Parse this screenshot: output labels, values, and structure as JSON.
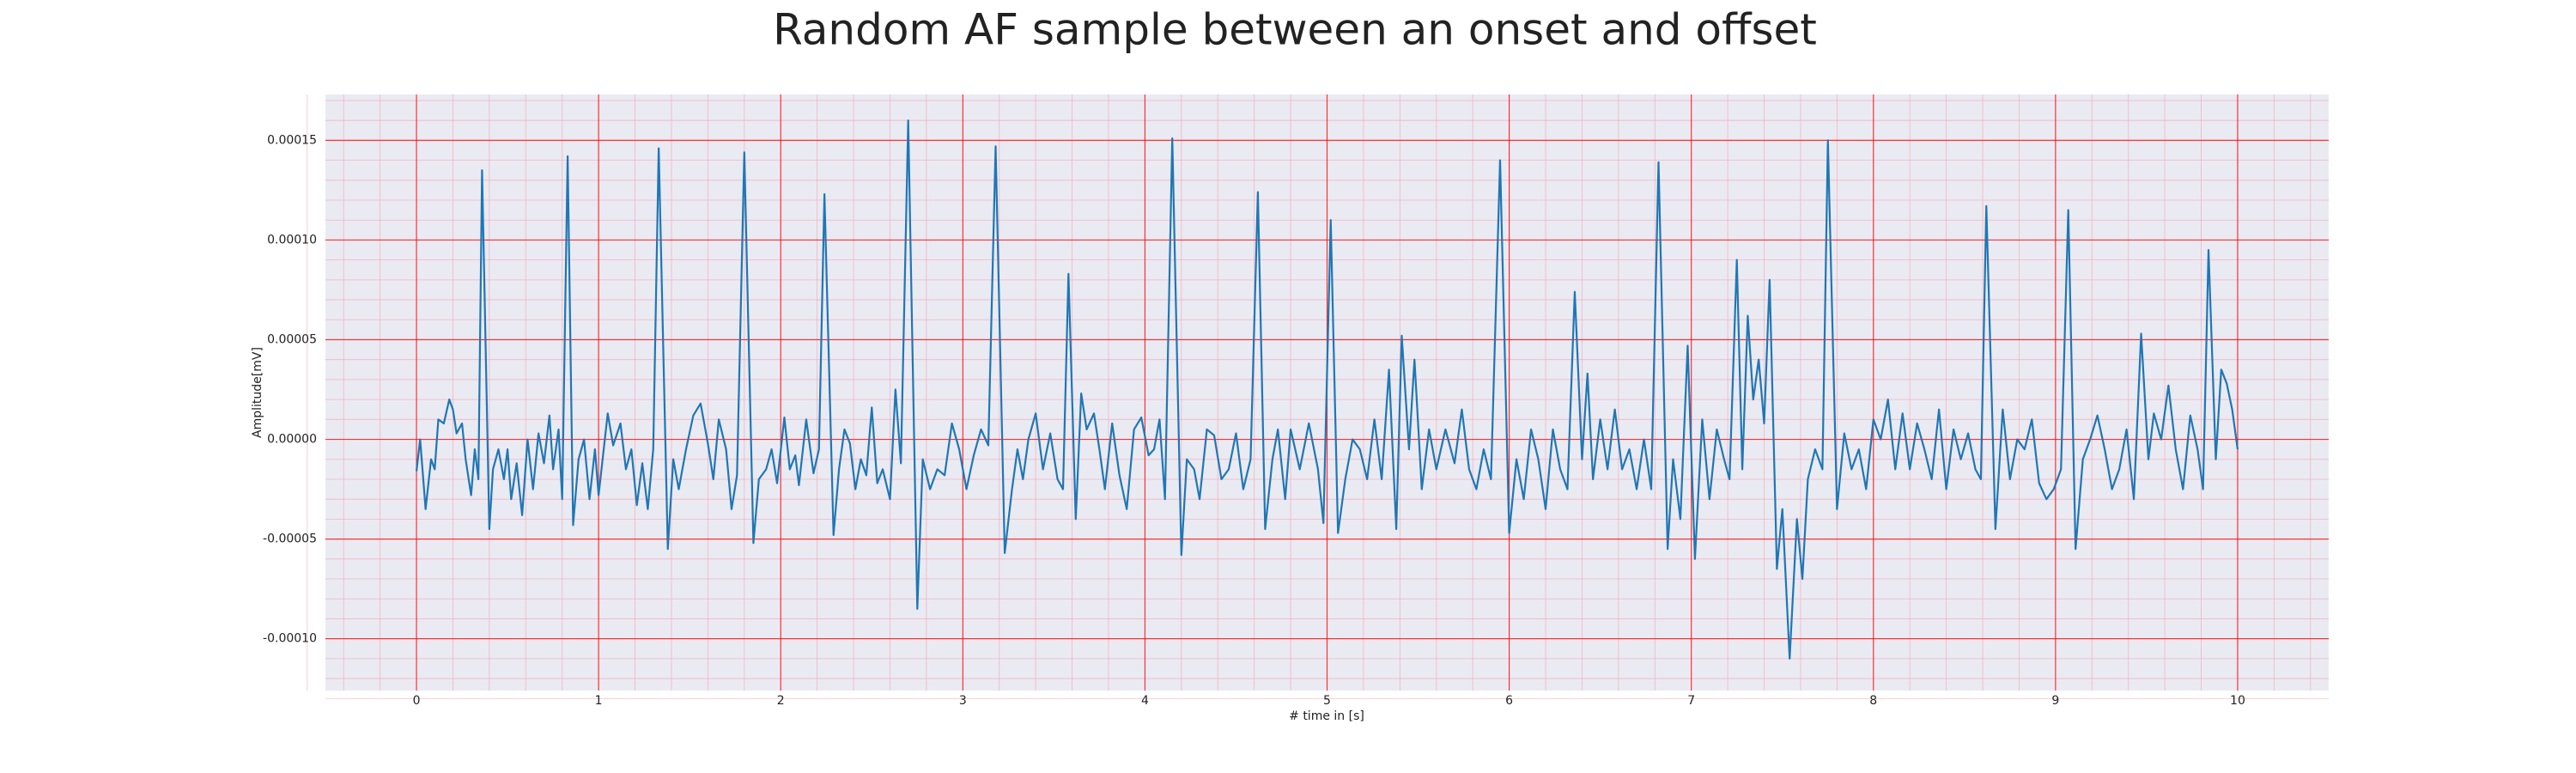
{
  "chart_data": {
    "type": "line",
    "title": "Random AF sample between an onset and offset",
    "xlabel": "# time in [s]",
    "ylabel": "Amplitude[mV]",
    "color": "#1f77b4",
    "grid": true,
    "minor_grid": true,
    "x": [
      0,
      0.02,
      0.05,
      0.08,
      0.1,
      0.12,
      0.15,
      0.18,
      0.2,
      0.22,
      0.25,
      0.27,
      0.3,
      0.32,
      0.34,
      0.36,
      0.4,
      0.42,
      0.45,
      0.48,
      0.5,
      0.52,
      0.55,
      0.58,
      0.61,
      0.64,
      0.67,
      0.7,
      0.73,
      0.75,
      0.78,
      0.8,
      0.83,
      0.86,
      0.89,
      0.92,
      0.95,
      0.98,
      1.0,
      1.05,
      1.08,
      1.12,
      1.15,
      1.18,
      1.21,
      1.24,
      1.27,
      1.3,
      1.33,
      1.38,
      1.41,
      1.44,
      1.48,
      1.52,
      1.56,
      1.6,
      1.63,
      1.66,
      1.7,
      1.73,
      1.76,
      1.8,
      1.85,
      1.88,
      1.92,
      1.95,
      1.98,
      2.02,
      2.05,
      2.08,
      2.1,
      2.14,
      2.18,
      2.21,
      2.24,
      2.29,
      2.32,
      2.35,
      2.38,
      2.41,
      2.44,
      2.47,
      2.5,
      2.53,
      2.56,
      2.6,
      2.63,
      2.66,
      2.7,
      2.75,
      2.78,
      2.82,
      2.86,
      2.9,
      2.94,
      2.98,
      3.02,
      3.06,
      3.1,
      3.14,
      3.18,
      3.23,
      3.27,
      3.3,
      3.33,
      3.36,
      3.4,
      3.44,
      3.48,
      3.52,
      3.55,
      3.58,
      3.62,
      3.65,
      3.68,
      3.72,
      3.75,
      3.78,
      3.82,
      3.86,
      3.9,
      3.94,
      3.98,
      4.02,
      4.05,
      4.08,
      4.11,
      4.15,
      4.2,
      4.23,
      4.27,
      4.3,
      4.34,
      4.38,
      4.42,
      4.46,
      4.5,
      4.54,
      4.58,
      4.62,
      4.66,
      4.7,
      4.73,
      4.77,
      4.8,
      4.85,
      4.9,
      4.95,
      4.98,
      5.02,
      5.06,
      5.1,
      5.14,
      5.18,
      5.22,
      5.26,
      5.3,
      5.34,
      5.38,
      5.41,
      5.45,
      5.48,
      5.52,
      5.56,
      5.6,
      5.65,
      5.7,
      5.74,
      5.78,
      5.82,
      5.86,
      5.9,
      5.95,
      6.0,
      6.04,
      6.08,
      6.12,
      6.16,
      6.2,
      6.24,
      6.28,
      6.32,
      6.36,
      6.4,
      6.43,
      6.46,
      6.5,
      6.54,
      6.58,
      6.62,
      6.66,
      6.7,
      6.74,
      6.78,
      6.82,
      6.87,
      6.9,
      6.94,
      6.98,
      7.02,
      7.06,
      7.1,
      7.14,
      7.18,
      7.21,
      7.25,
      7.28,
      7.31,
      7.34,
      7.37,
      7.4,
      7.43,
      7.47,
      7.5,
      7.54,
      7.58,
      7.61,
      7.64,
      7.68,
      7.72,
      7.75,
      7.8,
      7.84,
      7.88,
      7.92,
      7.96,
      8.0,
      8.04,
      8.08,
      8.12,
      8.16,
      8.2,
      8.24,
      8.28,
      8.32,
      8.36,
      8.4,
      8.44,
      8.48,
      8.52,
      8.56,
      8.59,
      8.62,
      8.67,
      8.71,
      8.75,
      8.79,
      8.83,
      8.87,
      8.91,
      8.95,
      8.99,
      9.03,
      9.07,
      9.11,
      9.15,
      9.19,
      9.23,
      9.27,
      9.31,
      9.35,
      9.39,
      9.43,
      9.47,
      9.51,
      9.54,
      9.58,
      9.62,
      9.66,
      9.7,
      9.74,
      9.78,
      9.81,
      9.84,
      9.88,
      9.91,
      9.94,
      9.97,
      10.0
    ],
    "values": [
      -1.6e-05,
      0,
      -3.5e-05,
      -1e-05,
      -1.5e-05,
      1e-05,
      8e-06,
      2e-05,
      1.5e-05,
      3e-06,
      8e-06,
      -1e-05,
      -2.8e-05,
      -5e-06,
      -2e-05,
      0.000135,
      -4.5e-05,
      -1.5e-05,
      -5e-06,
      -2e-05,
      -5e-06,
      -3e-05,
      -1.2e-05,
      -3.8e-05,
      0,
      -2.5e-05,
      3e-06,
      -1.2e-05,
      1.2e-05,
      -1.5e-05,
      5e-06,
      -3e-05,
      0.000142,
      -4.3e-05,
      -1e-05,
      0,
      -3e-05,
      -5e-06,
      -2.8e-05,
      1.3e-05,
      -3e-06,
      8e-06,
      -1.5e-05,
      -5e-06,
      -3.3e-05,
      -1.2e-05,
      -3.5e-05,
      -5e-06,
      0.000146,
      -5.5e-05,
      -1e-05,
      -2.5e-05,
      -5e-06,
      1.2e-05,
      1.8e-05,
      -2e-06,
      -2e-05,
      1e-05,
      -5e-06,
      -3.5e-05,
      -1.8e-05,
      0.000144,
      -5.2e-05,
      -2e-05,
      -1.5e-05,
      -5e-06,
      -2.2e-05,
      1.1e-05,
      -1.5e-05,
      -8e-06,
      -2.3e-05,
      1e-05,
      -1.7e-05,
      -5e-06,
      0.000123,
      -4.8e-05,
      -1.5e-05,
      5e-06,
      -2e-06,
      -2.5e-05,
      -1e-05,
      -1.8e-05,
      1.6e-05,
      -2.2e-05,
      -1.5e-05,
      -3e-05,
      2.5e-05,
      -1.2e-05,
      0.00016,
      -8.5e-05,
      -1e-05,
      -2.5e-05,
      -1.5e-05,
      -1.8e-05,
      8e-06,
      -5e-06,
      -2.5e-05,
      -8e-06,
      5e-06,
      -3e-06,
      0.000147,
      -5.7e-05,
      -2.5e-05,
      -5e-06,
      -2e-05,
      0,
      1.3e-05,
      -1.5e-05,
      3e-06,
      -2e-05,
      -2.5e-05,
      8.3e-05,
      -4e-05,
      2.3e-05,
      5e-06,
      1.3e-05,
      -5e-06,
      -2.5e-05,
      8e-06,
      -1.8e-05,
      -3.5e-05,
      5e-06,
      1.1e-05,
      -8e-06,
      -5e-06,
      1e-05,
      -3e-05,
      0.000151,
      -5.8e-05,
      -1e-05,
      -1.5e-05,
      -3e-05,
      5e-06,
      2e-06,
      -2e-05,
      -1.5e-05,
      3e-06,
      -2.5e-05,
      -1e-05,
      0.000124,
      -4.5e-05,
      -1e-05,
      5e-06,
      -3e-05,
      5e-06,
      -1.5e-05,
      8e-06,
      -1.5e-05,
      -4.2e-05,
      0.00011,
      -4.7e-05,
      -2e-05,
      0,
      -5e-06,
      -2e-05,
      1e-05,
      -2e-05,
      3.5e-05,
      -4.5e-05,
      5.2e-05,
      -5e-06,
      4e-05,
      -2.5e-05,
      5e-06,
      -1.5e-05,
      5e-06,
      -1.2e-05,
      1.5e-05,
      -1.5e-05,
      -2.5e-05,
      -5e-06,
      -2e-05,
      0.00014,
      -4.7e-05,
      -1e-05,
      -3e-05,
      5e-06,
      -1e-05,
      -3.5e-05,
      5e-06,
      -1.5e-05,
      -2.5e-05,
      7.4e-05,
      -1e-05,
      3.3e-05,
      -2e-05,
      1e-05,
      -1.5e-05,
      1.5e-05,
      -1.5e-05,
      -5e-06,
      -2.5e-05,
      0,
      -2.5e-05,
      0.000139,
      -5.5e-05,
      -1e-05,
      -4e-05,
      4.7e-05,
      -6e-05,
      1e-05,
      -3e-05,
      5e-06,
      -1e-05,
      -2e-05,
      9e-05,
      -1.5e-05,
      6.2e-05,
      2e-05,
      4e-05,
      8e-06,
      8e-05,
      -6.5e-05,
      -3.5e-05,
      -0.00011,
      -4e-05,
      -7e-05,
      -2e-05,
      -5e-06,
      -1.5e-05,
      0.00015,
      -3.5e-05,
      3e-06,
      -1.5e-05,
      -5e-06,
      -2.5e-05,
      1e-05,
      0,
      2e-05,
      -1.5e-05,
      1.3e-05,
      -1.5e-05,
      8e-06,
      -5e-06,
      -2e-05,
      1.5e-05,
      -2.5e-05,
      5e-06,
      -1e-05,
      3e-06,
      -1.5e-05,
      -2e-05,
      0.000117,
      -4.5e-05,
      1.5e-05,
      -2e-05,
      0,
      -5e-06,
      1e-05,
      -2.2e-05,
      -3e-05,
      -2.5e-05,
      -1.5e-05,
      0.000115,
      -5.5e-05,
      -1e-05,
      0,
      1.2e-05,
      -5e-06,
      -2.5e-05,
      -1.5e-05,
      5e-06,
      -3e-05,
      5.3e-05,
      -1e-05,
      1.3e-05,
      0,
      2.7e-05,
      -5e-06,
      -2.5e-05,
      1.2e-05,
      -5e-06,
      -2.5e-05,
      9.5e-05,
      -1e-05,
      3.5e-05,
      2.8e-05,
      1.5e-05,
      -5e-06
    ],
    "xlim": [
      -0.5,
      10.5
    ],
    "xticks": [
      0,
      1,
      2,
      3,
      4,
      5,
      6,
      7,
      8,
      9,
      10
    ],
    "ylim": [
      -0.000126,
      0.000173
    ],
    "yticks": [
      {
        "value": -0.0001,
        "label": "-0.00010"
      },
      {
        "value": -5e-05,
        "label": "-0.00005"
      },
      {
        "value": 0,
        "label": "0.00000"
      },
      {
        "value": 5e-05,
        "label": "0.00005"
      },
      {
        "value": 0.0001,
        "label": "0.00010"
      },
      {
        "value": 0.00015,
        "label": "0.00015"
      }
    ]
  }
}
